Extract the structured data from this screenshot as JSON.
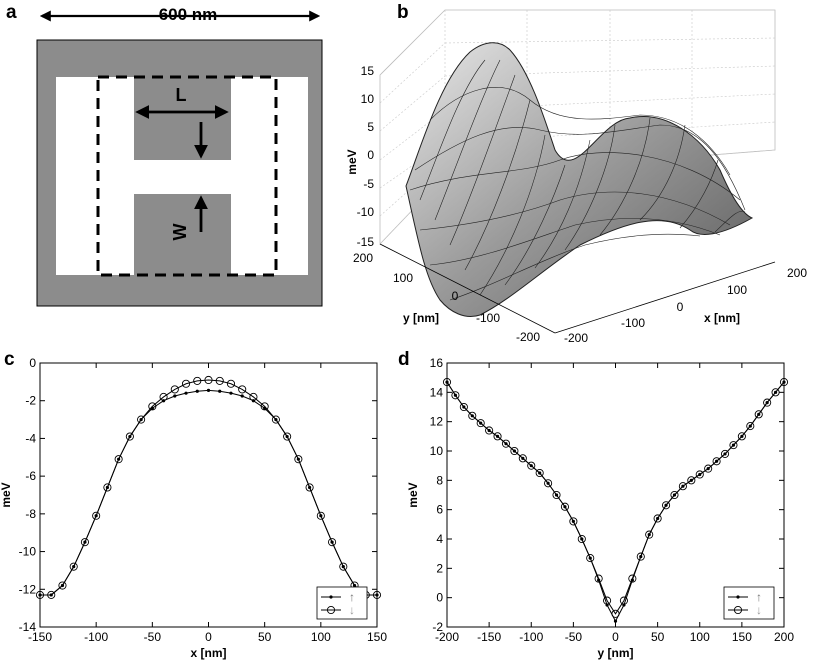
{
  "panel_letters": {
    "a": "a",
    "b": "b",
    "c": "c",
    "d": "d"
  },
  "panel_a": {
    "width_label": "600 nm",
    "L_label": "L",
    "W_label": "W",
    "colors": {
      "background": "#8c8c8c",
      "gap": "#ffffff",
      "dashed": "#000000"
    }
  },
  "panel_b": {
    "zlabel": "meV",
    "xlabel": "x [nm]",
    "ylabel": "y [nm]",
    "z_ticks": [
      "15",
      "10",
      "5",
      "0",
      "-5",
      "-10",
      "-15"
    ],
    "x_ticks": [
      "-200",
      "-100",
      "0",
      "100",
      "200"
    ],
    "y_ticks": [
      "200",
      "100",
      "0",
      "-100",
      "-200"
    ]
  },
  "chart_data": [
    {
      "type": "line",
      "panel": "c",
      "xlabel": "x [nm]",
      "ylabel": "meV",
      "xlim": [
        -150,
        150
      ],
      "ylim": [
        -14,
        0
      ],
      "x_ticks": [
        "-150",
        "-100",
        "-50",
        "0",
        "50",
        "100",
        "150"
      ],
      "y_ticks": [
        "-14",
        "-12",
        "-10",
        "-8",
        "-6",
        "-4",
        "-2",
        "0"
      ],
      "legend_location": "bottom-right",
      "legend": [
        "↑",
        "↓"
      ],
      "series": [
        {
          "name": "↑",
          "marker": "dot",
          "x": [
            -150,
            -140,
            -130,
            -120,
            -110,
            -100,
            -90,
            -80,
            -70,
            -60,
            -50,
            -40,
            -30,
            -20,
            -10,
            0,
            10,
            20,
            30,
            40,
            50,
            60,
            70,
            80,
            90,
            100,
            110,
            120,
            130,
            140,
            150
          ],
          "y": [
            -12.3,
            -12.3,
            -11.8,
            -10.8,
            -9.5,
            -8.1,
            -6.6,
            -5.1,
            -3.9,
            -3.0,
            -2.4,
            -2.0,
            -1.75,
            -1.6,
            -1.5,
            -1.45,
            -1.5,
            -1.6,
            -1.75,
            -2.0,
            -2.4,
            -3.0,
            -3.9,
            -5.1,
            -6.6,
            -8.1,
            -9.5,
            -10.8,
            -11.8,
            -12.3,
            -12.3
          ]
        },
        {
          "name": "↓",
          "marker": "circle",
          "x": [
            -150,
            -140,
            -130,
            -120,
            -110,
            -100,
            -90,
            -80,
            -70,
            -60,
            -50,
            -40,
            -30,
            -20,
            -10,
            0,
            10,
            20,
            30,
            40,
            50,
            60,
            70,
            80,
            90,
            100,
            110,
            120,
            130,
            140,
            150
          ],
          "y": [
            -12.3,
            -12.3,
            -11.8,
            -10.8,
            -9.5,
            -8.1,
            -6.6,
            -5.1,
            -3.9,
            -3.0,
            -2.3,
            -1.8,
            -1.4,
            -1.1,
            -0.95,
            -0.9,
            -0.95,
            -1.1,
            -1.4,
            -1.8,
            -2.3,
            -3.0,
            -3.9,
            -5.1,
            -6.6,
            -8.1,
            -9.5,
            -10.8,
            -11.8,
            -12.3,
            -12.3
          ]
        }
      ]
    },
    {
      "type": "line",
      "panel": "d",
      "xlabel": "y [nm]",
      "ylabel": "meV",
      "xlim": [
        -200,
        200
      ],
      "ylim": [
        -2,
        16
      ],
      "x_ticks": [
        "-200",
        "-150",
        "-100",
        "-50",
        "0",
        "50",
        "100",
        "150",
        "200"
      ],
      "y_ticks": [
        "-2",
        "0",
        "2",
        "4",
        "6",
        "8",
        "10",
        "12",
        "14",
        "16"
      ],
      "legend_location": "bottom-right",
      "legend": [
        "↑",
        "↓"
      ],
      "series": [
        {
          "name": "↑",
          "marker": "dot",
          "x": [
            -200,
            -190,
            -180,
            -170,
            -160,
            -150,
            -140,
            -130,
            -120,
            -110,
            -100,
            -90,
            -80,
            -70,
            -60,
            -50,
            -40,
            -30,
            -20,
            -10,
            0,
            10,
            20,
            30,
            40,
            50,
            60,
            70,
            80,
            90,
            100,
            110,
            120,
            130,
            140,
            150,
            160,
            170,
            180,
            190,
            200
          ],
          "y": [
            14.7,
            13.8,
            13.0,
            12.4,
            11.9,
            11.4,
            11.0,
            10.5,
            10.0,
            9.5,
            9.0,
            8.5,
            7.8,
            7.0,
            6.2,
            5.2,
            4.0,
            2.7,
            1.2,
            -0.5,
            -1.6,
            -0.5,
            1.2,
            2.8,
            4.3,
            5.4,
            6.3,
            7.0,
            7.6,
            8.0,
            8.4,
            8.8,
            9.3,
            9.8,
            10.4,
            11.0,
            11.7,
            12.5,
            13.3,
            14.0,
            14.7
          ]
        },
        {
          "name": "↓",
          "marker": "circle",
          "x": [
            -200,
            -190,
            -180,
            -170,
            -160,
            -150,
            -140,
            -130,
            -120,
            -110,
            -100,
            -90,
            -80,
            -70,
            -60,
            -50,
            -40,
            -30,
            -20,
            -10,
            0,
            10,
            20,
            30,
            40,
            50,
            60,
            70,
            80,
            90,
            100,
            110,
            120,
            130,
            140,
            150,
            160,
            170,
            180,
            190,
            200
          ],
          "y": [
            14.7,
            13.8,
            13.0,
            12.4,
            11.9,
            11.4,
            11.0,
            10.5,
            10.0,
            9.5,
            9.0,
            8.5,
            7.8,
            7.0,
            6.2,
            5.2,
            4.0,
            2.7,
            1.3,
            -0.2,
            -1.1,
            -0.2,
            1.3,
            2.8,
            4.3,
            5.4,
            6.3,
            7.0,
            7.6,
            8.0,
            8.4,
            8.8,
            9.3,
            9.8,
            10.4,
            11.0,
            11.7,
            12.5,
            13.3,
            14.0,
            14.7
          ]
        }
      ]
    }
  ]
}
